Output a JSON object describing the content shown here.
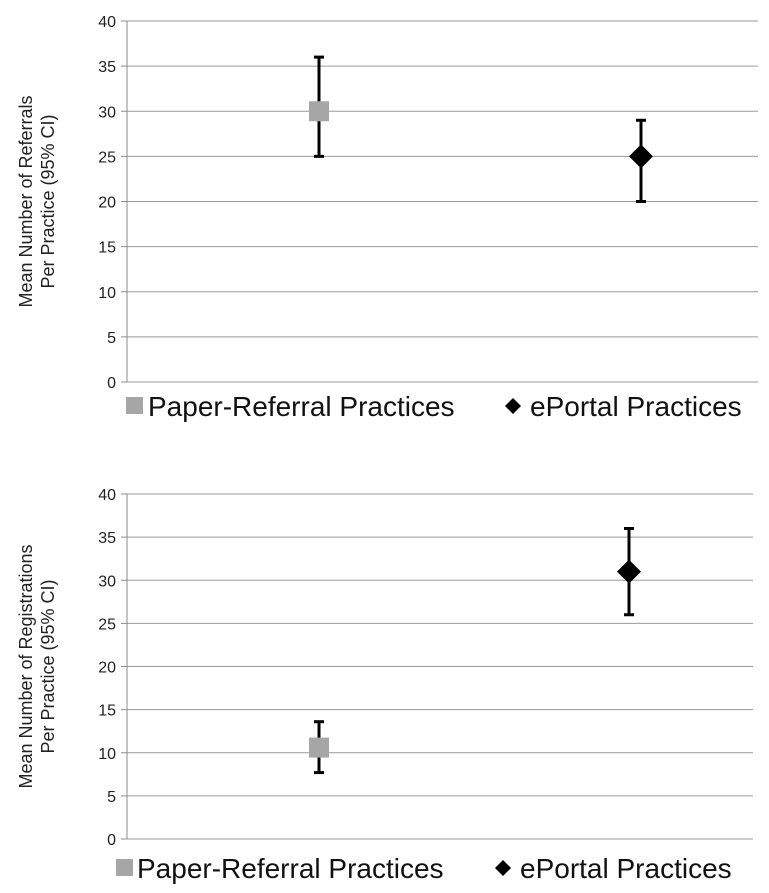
{
  "chart_data": [
    {
      "type": "scatter",
      "categories": [
        "Paper-Referral Practices",
        "ePortal Practices"
      ],
      "ylabel_lines": [
        "Mean Number of Referrals",
        "Per Practice (95% CI)"
      ],
      "ylim": [
        0,
        40
      ],
      "yticks": [
        0,
        5,
        10,
        15,
        20,
        25,
        30,
        35,
        40
      ],
      "grid": true,
      "legend_position": "bottom",
      "series": [
        {
          "name": "Paper-Referral Practices",
          "marker": "square",
          "color": "#a6a6a6",
          "value": 30,
          "ci_low": 25,
          "ci_high": 36
        },
        {
          "name": "ePortal Practices",
          "marker": "diamond",
          "color": "#000000",
          "value": 25,
          "ci_low": 20,
          "ci_high": 29
        }
      ]
    },
    {
      "type": "scatter",
      "categories": [
        "Paper-Referral Practices",
        "ePortal Practices"
      ],
      "ylabel_lines": [
        "Mean Number of Registrations",
        "Per Practice (95% CI)"
      ],
      "ylim": [
        0,
        40
      ],
      "yticks": [
        0,
        5,
        10,
        15,
        20,
        25,
        30,
        35,
        40
      ],
      "grid": true,
      "legend_position": "bottom",
      "series": [
        {
          "name": "Paper-Referral Practices",
          "marker": "square",
          "color": "#a6a6a6",
          "value": 10.6,
          "ci_low": 7.7,
          "ci_high": 13.6
        },
        {
          "name": "ePortal Practices",
          "marker": "diamond",
          "color": "#000000",
          "value": 31,
          "ci_low": 26,
          "ci_high": 36
        }
      ]
    }
  ]
}
